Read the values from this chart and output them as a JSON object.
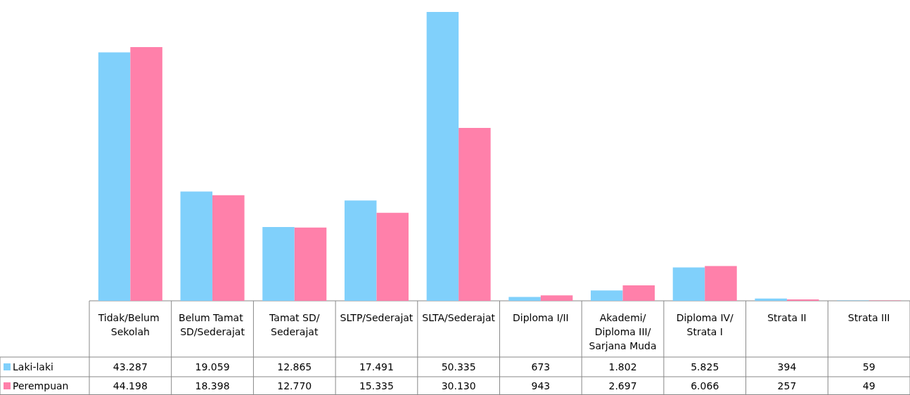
{
  "chart_data": {
    "type": "bar",
    "categories": [
      "Tidak/Belum Sekolah",
      "Belum Tamat SD/Sederajat",
      "Tamat SD/Sederajat",
      "SLTP/Sederajat",
      "SLTA/Sederajat",
      "Diploma I/II",
      "Akademi/Diploma III/Sarjana Muda",
      "Diploma IV/Strata I",
      "Strata II",
      "Strata III"
    ],
    "series": [
      {
        "name": "Laki-laki",
        "color": "#80d0fb",
        "values": [
          43287,
          19059,
          12865,
          17491,
          50335,
          673,
          1802,
          5825,
          394,
          59
        ],
        "value_labels": [
          "43.287",
          "19.059",
          "12.865",
          "17.491",
          "50.335",
          "673",
          "1.802",
          "5.825",
          "394",
          "59"
        ]
      },
      {
        "name": "Perempuan",
        "color": "#ff80aa",
        "values": [
          44198,
          18398,
          12770,
          15335,
          30130,
          943,
          2697,
          6066,
          257,
          49
        ],
        "value_labels": [
          "44.198",
          "18.398",
          "12.770",
          "15.335",
          "30.130",
          "943",
          "2.697",
          "6.066",
          "257",
          "49"
        ]
      }
    ],
    "legend": "bottom",
    "grid": false
  }
}
